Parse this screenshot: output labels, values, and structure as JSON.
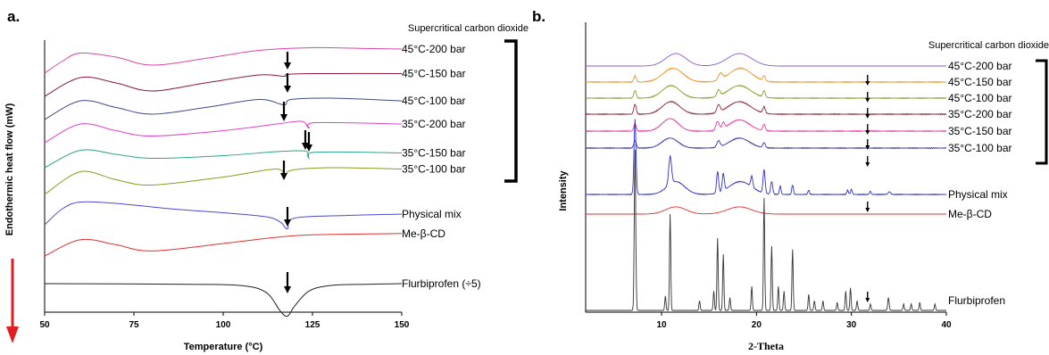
{
  "chart_data": [
    {
      "type": "line",
      "panel_label": "a.",
      "xlabel": "Temperature (°C)",
      "ylabel": "Endothermic heat flow (mW)",
      "xlim": [
        50,
        150
      ],
      "xticks": [
        50,
        75,
        100,
        125,
        150
      ],
      "legend_header": "Supercritical carbon dioxide",
      "series": [
        {
          "name": "45°C-200 bar",
          "color": "#d946a6",
          "points": [
            [
              50,
              0.0
            ],
            [
              55,
              0.45
            ],
            [
              60,
              0.75
            ],
            [
              70,
              0.6
            ],
            [
              80,
              0.3
            ],
            [
              95,
              0.55
            ],
            [
              110,
              0.85
            ],
            [
              125,
              0.95
            ],
            [
              140,
              0.92
            ],
            [
              150,
              0.9
            ]
          ]
        },
        {
          "name": "45°C-150 bar",
          "color": "#8b1a3a",
          "points": [
            [
              50,
              0.0
            ],
            [
              60,
              0.7
            ],
            [
              70,
              0.5
            ],
            [
              80,
              0.2
            ],
            [
              95,
              0.5
            ],
            [
              110,
              0.8
            ],
            [
              117,
              0.75
            ],
            [
              118,
              0.82
            ],
            [
              125,
              0.85
            ],
            [
              150,
              0.85
            ]
          ]
        },
        {
          "name": "45°C-100 bar",
          "color": "#3d4a8a",
          "points": [
            [
              50,
              0.0
            ],
            [
              60,
              0.7
            ],
            [
              70,
              0.45
            ],
            [
              80,
              0.2
            ],
            [
              95,
              0.45
            ],
            [
              110,
              0.75
            ],
            [
              117,
              0.55
            ],
            [
              119,
              0.75
            ],
            [
              130,
              0.8
            ],
            [
              150,
              0.7
            ]
          ]
        },
        {
          "name": "35°C-200 bar",
          "color": "#e040c8",
          "points": [
            [
              50,
              0.0
            ],
            [
              60,
              0.7
            ],
            [
              70,
              0.45
            ],
            [
              80,
              0.25
            ],
            [
              100,
              0.45
            ],
            [
              115,
              0.7
            ],
            [
              122,
              0.8
            ],
            [
              124,
              0.55
            ],
            [
              126,
              0.75
            ],
            [
              150,
              0.7
            ]
          ]
        },
        {
          "name": "35°C-150 bar",
          "color": "#2aa58a",
          "points": [
            [
              50,
              0.0
            ],
            [
              60,
              0.65
            ],
            [
              70,
              0.5
            ],
            [
              80,
              0.35
            ],
            [
              100,
              0.45
            ],
            [
              115,
              0.6
            ],
            [
              123,
              0.62
            ],
            [
              124,
              0.35
            ],
            [
              126,
              0.58
            ],
            [
              150,
              0.55
            ]
          ]
        },
        {
          "name": "35°C-100 bar",
          "color": "#8a9a20",
          "points": [
            [
              50,
              0.0
            ],
            [
              60,
              0.85
            ],
            [
              70,
              0.55
            ],
            [
              80,
              0.35
            ],
            [
              100,
              0.65
            ],
            [
              115,
              0.95
            ],
            [
              117,
              0.6
            ],
            [
              119,
              0.9
            ],
            [
              130,
              1.0
            ],
            [
              150,
              0.95
            ]
          ]
        },
        {
          "name": "Physical mix",
          "color": "#4a4ad8",
          "points": [
            [
              50,
              0.0
            ],
            [
              55,
              0.6
            ],
            [
              60,
              0.85
            ],
            [
              70,
              0.8
            ],
            [
              85,
              0.6
            ],
            [
              100,
              0.45
            ],
            [
              112,
              0.3
            ],
            [
              116,
              0.1
            ],
            [
              118,
              -0.15
            ],
            [
              120,
              0.25
            ],
            [
              135,
              0.35
            ],
            [
              150,
              0.4
            ]
          ]
        },
        {
          "name": "Me-β-CD",
          "color": "#e03030",
          "points": [
            [
              50,
              0.0
            ],
            [
              60,
              0.65
            ],
            [
              70,
              0.45
            ],
            [
              80,
              0.2
            ],
            [
              100,
              0.5
            ],
            [
              115,
              0.75
            ],
            [
              125,
              0.85
            ],
            [
              150,
              0.9
            ]
          ]
        },
        {
          "name": "Flurbiprofen (÷5)",
          "color": "#222222",
          "points": [
            [
              50,
              0.0
            ],
            [
              90,
              -0.05
            ],
            [
              105,
              -0.15
            ],
            [
              112,
              -0.7
            ],
            [
              116,
              -2.2
            ],
            [
              118,
              -2.6
            ],
            [
              120,
              -1.8
            ],
            [
              124,
              -0.6
            ],
            [
              130,
              -0.15
            ],
            [
              140,
              -0.05
            ],
            [
              150,
              0.0
            ]
          ]
        }
      ],
      "arrows_at": [
        118,
        118,
        117,
        123,
        124,
        117,
        118,
        118
      ]
    },
    {
      "type": "line",
      "panel_label": "b.",
      "xlabel": "2-Theta",
      "ylabel": "Intensity",
      "xlim": [
        2,
        40
      ],
      "xticks": [
        10,
        20,
        30,
        40
      ],
      "legend_header": "Supercritical carbon dioxide",
      "series": [
        {
          "name": "45°C-200 bar",
          "color": "#8a5ac8",
          "peaks": [
            [
              11.5,
              1.0,
              2.5
            ],
            [
              18.2,
              1.0,
              3.0
            ]
          ]
        },
        {
          "name": "45°C-150 bar",
          "color": "#e8962a",
          "peaks": [
            [
              7.2,
              0.5,
              0.3
            ],
            [
              11.2,
              1.1,
              2.5
            ],
            [
              16.2,
              0.5,
              0.5
            ],
            [
              18.3,
              1.1,
              2.8
            ],
            [
              20.8,
              0.4,
              0.3
            ]
          ]
        },
        {
          "name": "45°C-100 bar",
          "color": "#8aa030",
          "peaks": [
            [
              7.2,
              0.6,
              0.3
            ],
            [
              11.0,
              1.0,
              2.2
            ],
            [
              16.0,
              0.5,
              0.4
            ],
            [
              18.2,
              1.0,
              2.8
            ],
            [
              20.8,
              0.5,
              0.3
            ]
          ]
        },
        {
          "name": "35°C-200 bar",
          "color": "#8b2a3a",
          "peaks": [
            [
              7.2,
              0.8,
              0.3
            ],
            [
              11.0,
              1.0,
              2.2
            ],
            [
              16.0,
              0.6,
              0.4
            ],
            [
              18.2,
              1.0,
              2.8
            ],
            [
              20.8,
              0.5,
              0.3
            ]
          ]
        },
        {
          "name": "35°C-150 bar",
          "color": "#e040a0",
          "peaks": [
            [
              7.2,
              0.6,
              0.3
            ],
            [
              10.9,
              1.0,
              2.0
            ],
            [
              15.9,
              0.7,
              0.4
            ],
            [
              16.5,
              0.5,
              0.3
            ],
            [
              18.2,
              0.9,
              2.5
            ],
            [
              20.8,
              0.5,
              0.3
            ]
          ]
        },
        {
          "name": "35°C-100 bar",
          "color": "#3a3aa8",
          "peaks": [
            [
              7.2,
              0.6,
              0.3
            ],
            [
              10.9,
              0.8,
              2.0
            ],
            [
              16.0,
              0.5,
              0.4
            ],
            [
              18.2,
              0.8,
              2.5
            ],
            [
              20.8,
              0.4,
              0.3
            ]
          ]
        },
        {
          "name": "Physical mix",
          "color": "#3030c8",
          "peaks": [
            [
              7.2,
              7.0,
              0.25
            ],
            [
              10.9,
              2.6,
              0.35
            ],
            [
              11.5,
              1.2,
              2.2
            ],
            [
              15.9,
              2.0,
              0.25
            ],
            [
              16.5,
              1.6,
              0.25
            ],
            [
              18.3,
              1.2,
              2.8
            ],
            [
              19.5,
              1.0,
              0.25
            ],
            [
              20.8,
              2.2,
              0.25
            ],
            [
              21.6,
              1.2,
              0.25
            ],
            [
              22.5,
              0.8,
              0.2
            ],
            [
              23.8,
              0.9,
              0.2
            ],
            [
              25.5,
              0.4,
              0.2
            ],
            [
              29.6,
              0.4,
              0.2
            ],
            [
              30.0,
              0.5,
              0.2
            ],
            [
              32.0,
              0.3,
              0.2
            ],
            [
              34.0,
              0.25,
              0.3
            ]
          ]
        },
        {
          "name": "Me-β-CD",
          "color": "#e03030",
          "peaks": [
            [
              11.5,
              0.9,
              2.5
            ],
            [
              18.2,
              0.9,
              3.0
            ]
          ]
        },
        {
          "name": "Flurbiprofen",
          "color": "#333333",
          "peaks": [
            [
              7.2,
              10.0,
              0.18
            ],
            [
              10.4,
              0.9,
              0.15
            ],
            [
              10.9,
              6.0,
              0.15
            ],
            [
              14.0,
              0.6,
              0.15
            ],
            [
              15.5,
              1.2,
              0.15
            ],
            [
              15.9,
              4.5,
              0.15
            ],
            [
              16.5,
              3.5,
              0.15
            ],
            [
              17.2,
              0.8,
              0.15
            ],
            [
              19.5,
              1.5,
              0.15
            ],
            [
              20.8,
              7.0,
              0.15
            ],
            [
              21.6,
              4.0,
              0.15
            ],
            [
              22.3,
              1.5,
              0.15
            ],
            [
              22.9,
              1.2,
              0.15
            ],
            [
              23.8,
              3.8,
              0.15
            ],
            [
              25.5,
              1.0,
              0.15
            ],
            [
              26.1,
              0.6,
              0.15
            ],
            [
              27.0,
              0.6,
              0.15
            ],
            [
              28.5,
              0.5,
              0.15
            ],
            [
              29.4,
              1.2,
              0.15
            ],
            [
              29.9,
              1.4,
              0.15
            ],
            [
              30.6,
              0.6,
              0.15
            ],
            [
              32.0,
              0.4,
              0.15
            ],
            [
              33.9,
              0.8,
              0.18
            ],
            [
              35.5,
              0.4,
              0.15
            ],
            [
              36.3,
              0.4,
              0.15
            ],
            [
              37.2,
              0.5,
              0.15
            ],
            [
              38.8,
              0.4,
              0.15
            ]
          ]
        }
      ],
      "arrows_at": 31.7
    }
  ]
}
